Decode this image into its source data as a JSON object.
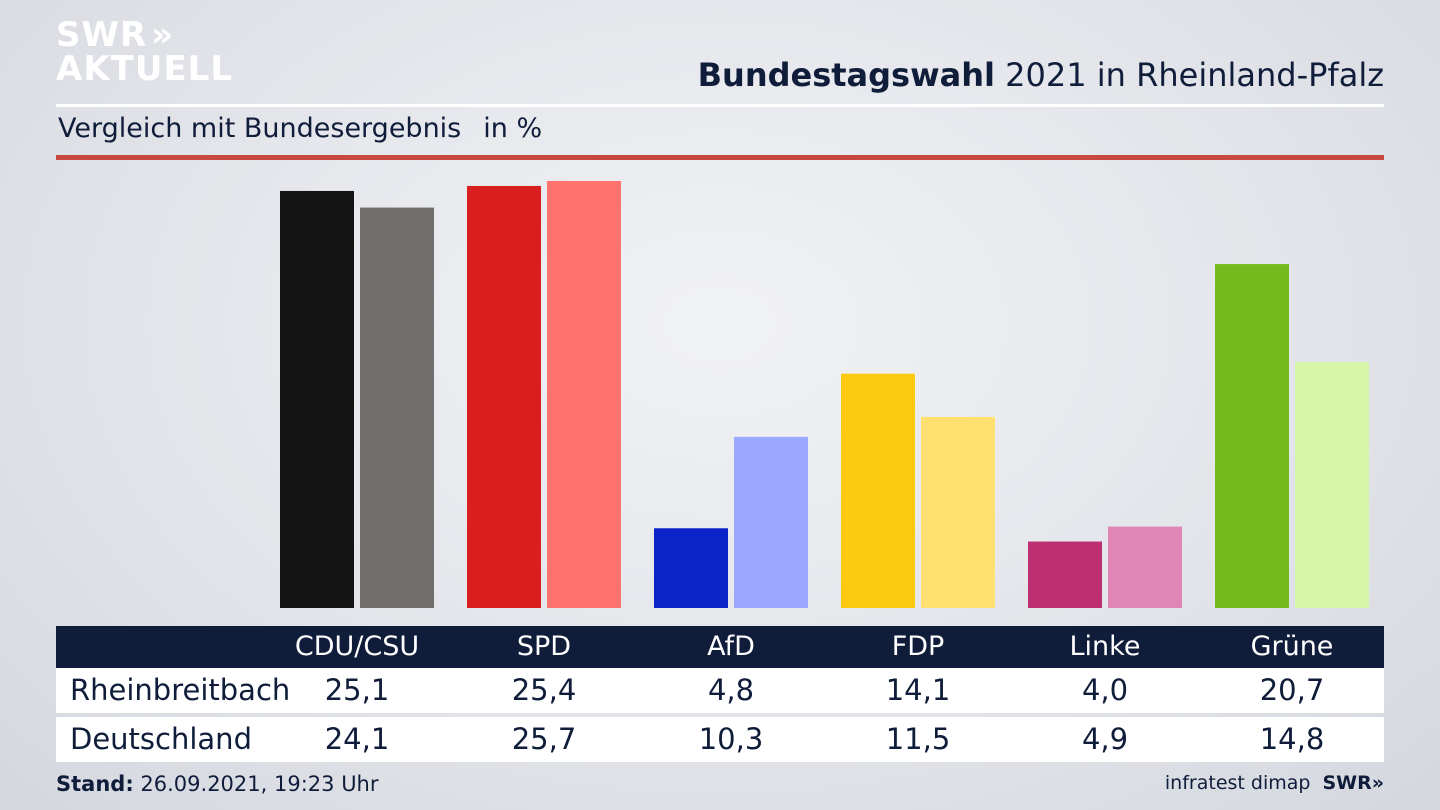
{
  "brand": {
    "line1": "SWR",
    "chevrons": "»",
    "line2": "AKTUELL"
  },
  "header": {
    "title_bold": "Bundestagswahl",
    "title_rest": "2021 in Rheinland-Pfalz",
    "subtitle": "Vergleich mit Bundesergebnis",
    "unit": "in %"
  },
  "table": {
    "row1_label": "Rheinbreitbach",
    "row2_label": "Deutschland"
  },
  "footer": {
    "stand_label": "Stand:",
    "stand_value": "26.09.2021, 19:23 Uhr",
    "source": "infratest dimap",
    "logo": "SWR»"
  },
  "colors": {
    "navy": "#0f1c3a",
    "red_rule": "#c8473f"
  },
  "chart_data": {
    "type": "bar",
    "categories": [
      "CDU/CSU",
      "SPD",
      "AfD",
      "FDP",
      "Linke",
      "Grüne"
    ],
    "series": [
      {
        "name": "Rheinbreitbach",
        "values": [
          25.1,
          25.4,
          4.8,
          14.1,
          4.0,
          20.7
        ],
        "labels": [
          "25,1",
          "25,4",
          "4,8",
          "14,1",
          "4,0",
          "20,7"
        ],
        "colors": [
          "#141414",
          "#d91e1e",
          "#0a24c8",
          "#fcca0f",
          "#bd2e73",
          "#76bb1e"
        ]
      },
      {
        "name": "Deutschland",
        "values": [
          24.1,
          25.7,
          10.3,
          11.5,
          4.9,
          14.8
        ],
        "labels": [
          "24,1",
          "25,7",
          "10,3",
          "11,5",
          "4,9",
          "14,8"
        ],
        "colors": [
          "#706f6d",
          "#ff726e",
          "#9ca8ff",
          "#ffe071",
          "#e086b6",
          "#d6f6aa"
        ]
      }
    ],
    "ylim": [
      0,
      26
    ]
  }
}
